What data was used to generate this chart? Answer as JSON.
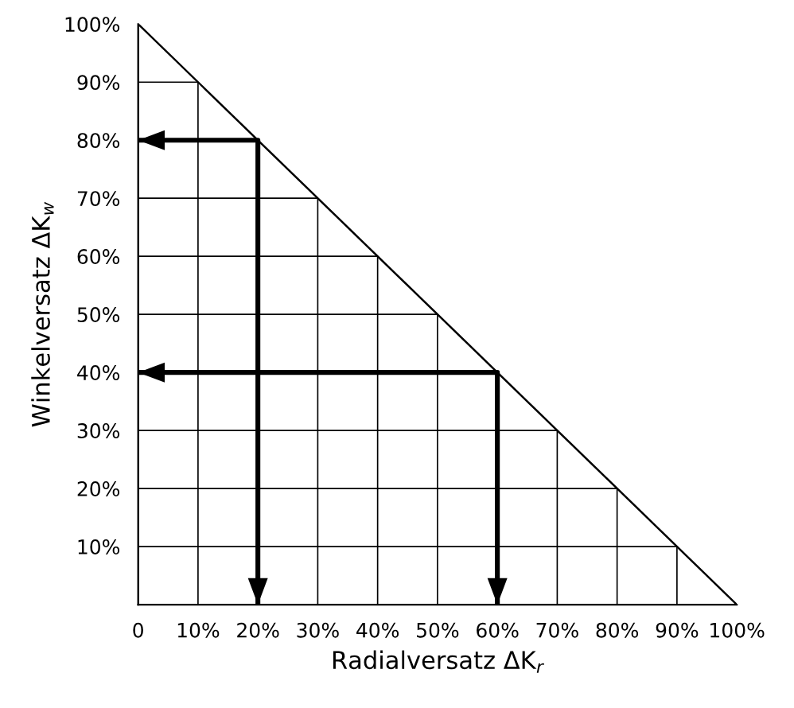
{
  "chart_data": {
    "type": "line",
    "xlabel": "Radialversatz ΔK$_{r}$",
    "ylabel": "Winkelversatz ΔK$_{w}$",
    "x": [
      0,
      100
    ],
    "values": [
      100,
      0
    ],
    "color": "#000000",
    "series": [
      {
        "type": "line",
        "color": "#000000",
        "x": [
          0,
          20,
          20
        ],
        "values": [
          80,
          80,
          0
        ]
      },
      {
        "type": "line",
        "color": "#000000",
        "x": [
          0,
          60,
          60
        ],
        "values": [
          40,
          40,
          0
        ]
      }
    ],
    "xlim": [
      0,
      100
    ],
    "ylim": [
      0,
      100
    ],
    "xticks": [
      0,
      {
        "value": 10,
        "label": "10%"
      },
      {
        "value": 20,
        "label": "20%"
      },
      {
        "value": 30,
        "label": "30%"
      },
      {
        "value": 40,
        "label": "40%"
      },
      {
        "value": 50,
        "label": "50%"
      },
      {
        "value": 60,
        "label": "60%"
      },
      {
        "value": 70,
        "label": "70%"
      },
      {
        "value": 80,
        "label": "80%"
      },
      {
        "value": 90,
        "label": "90%"
      },
      {
        "value": 100,
        "label": "100%"
      }
    ],
    "yticks": [
      {
        "value": 10,
        "label": "10%"
      },
      {
        "value": 20,
        "label": "20%"
      },
      {
        "value": 30,
        "label": "30%"
      },
      {
        "value": 40,
        "label": "40%"
      },
      {
        "value": 50,
        "label": "50%"
      },
      {
        "value": 60,
        "label": "60%"
      },
      {
        "value": 70,
        "label": "70%"
      },
      {
        "value": 80,
        "label": "80%"
      },
      {
        "value": 90,
        "label": "90%"
      },
      {
        "value": 100,
        "label": "100%"
      }
    ],
    "grid": true
  }
}
